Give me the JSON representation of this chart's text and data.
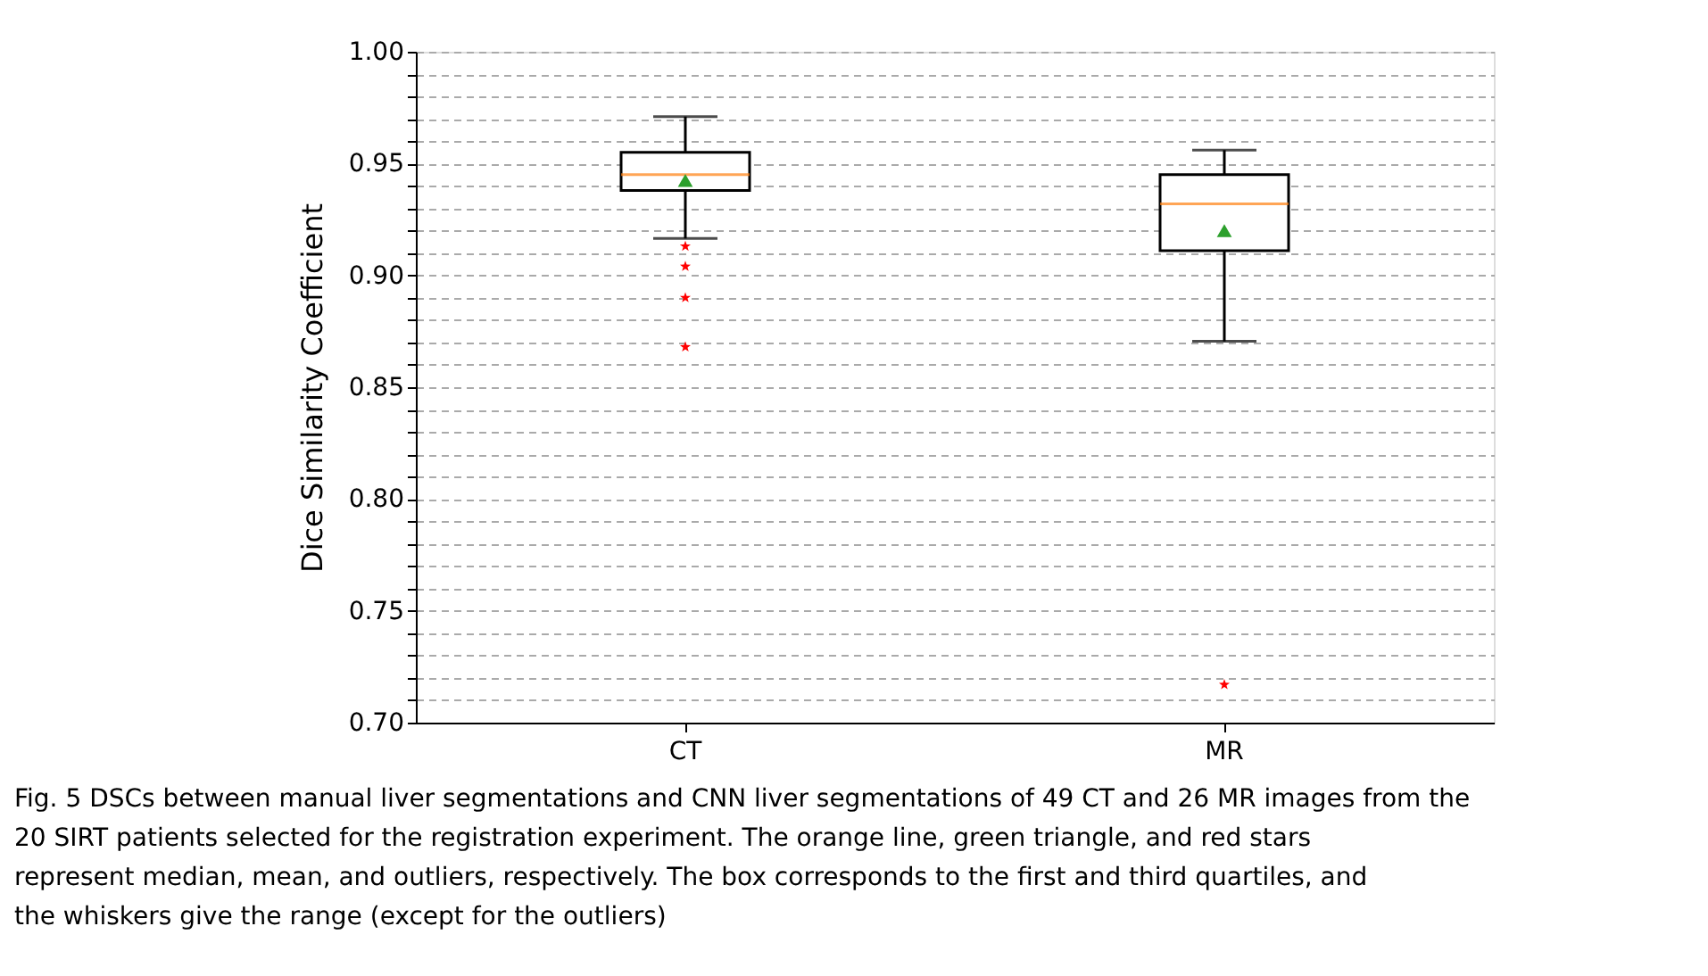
{
  "chart_data": {
    "type": "box",
    "categories": [
      "CT",
      "MR"
    ],
    "ylabel": "Dice Similarity Coefficient",
    "boxes": [
      {
        "low": 0.9165,
        "q1": 0.938,
        "median": 0.945,
        "q3": 0.955,
        "high": 0.971,
        "mean": 0.9425,
        "outliers": [
          0.913,
          0.904,
          0.89,
          0.868
        ]
      },
      {
        "low": 0.8705,
        "q1": 0.911,
        "median": 0.932,
        "q3": 0.945,
        "high": 0.956,
        "mean": 0.92,
        "outliers": [
          0.717
        ]
      }
    ],
    "ylim": [
      0.7,
      1.0
    ],
    "yticks": [
      {
        "value": 0.7,
        "label": "0.70"
      },
      {
        "value": 0.71,
        "label": null
      },
      {
        "value": 0.72,
        "label": null
      },
      {
        "value": 0.73,
        "label": null
      },
      {
        "value": 0.74,
        "label": null
      },
      {
        "value": 0.75,
        "label": "0.75"
      },
      {
        "value": 0.76,
        "label": null
      },
      {
        "value": 0.77,
        "label": null
      },
      {
        "value": 0.78,
        "label": null
      },
      {
        "value": 0.79,
        "label": null
      },
      {
        "value": 0.8,
        "label": "0.80"
      },
      {
        "value": 0.81,
        "label": null
      },
      {
        "value": 0.82,
        "label": null
      },
      {
        "value": 0.83,
        "label": null
      },
      {
        "value": 0.84,
        "label": null
      },
      {
        "value": 0.85,
        "label": "0.85"
      },
      {
        "value": 0.86,
        "label": null
      },
      {
        "value": 0.87,
        "label": null
      },
      {
        "value": 0.88,
        "label": null
      },
      {
        "value": 0.89,
        "label": null
      },
      {
        "value": 0.9,
        "label": "0.90"
      },
      {
        "value": 0.91,
        "label": null
      },
      {
        "value": 0.92,
        "label": null
      },
      {
        "value": 0.93,
        "label": null
      },
      {
        "value": 0.94,
        "label": null
      },
      {
        "value": 0.95,
        "label": "0.95"
      },
      {
        "value": 0.96,
        "label": null
      },
      {
        "value": 0.97,
        "label": null
      },
      {
        "value": 0.98,
        "label": null
      },
      {
        "value": 0.99,
        "label": null
      },
      {
        "value": 1.0,
        "label": "1.00"
      }
    ],
    "grid": "y",
    "annotations": [
      "Fig. 5  DSCs between manual liver segmentations and CNN liver segmentations of 49 CT and 26 MR images from the 20 SIRT patients selected for the registration experiment. The orange line, green triangle, and red stars represent median, mean, and outliers, respectively. The box corresponds to the first and third quartiles, and the whiskers give the range (except for the outliers)"
    ]
  }
}
